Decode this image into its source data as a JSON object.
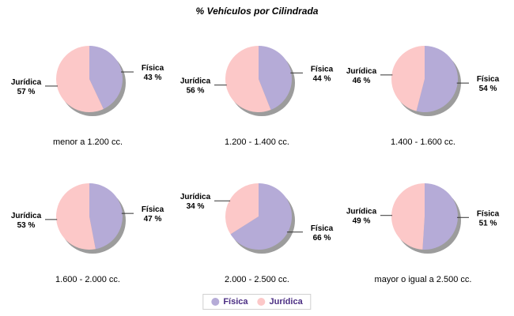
{
  "colors": {
    "fisica": "#b5abd7",
    "juridica": "#fcc8c8",
    "shadow": "#9c9c9c",
    "leader_line": "#333333",
    "legend_text": "#4b2e83",
    "legend_border": "#d0d0d0"
  },
  "legend": {
    "items": [
      {
        "label": "Física",
        "color": "#b5abd7"
      },
      {
        "label": "Jurídica",
        "color": "#fcc8c8"
      }
    ]
  },
  "chart_data": {
    "type": "pie",
    "title": "% Vehículos por Cilindrada",
    "label_format": "{value} %",
    "series": [
      "Física",
      "Jurídica"
    ],
    "start_angle_deg_from_top": 0,
    "direction": "clockwise",
    "pies": [
      {
        "category": "menor a 1.200 cc.",
        "slices": [
          {
            "name": "Física",
            "value": 43
          },
          {
            "name": "Jurídica",
            "value": 57
          }
        ]
      },
      {
        "category": "1.200 - 1.400 cc.",
        "slices": [
          {
            "name": "Física",
            "value": 44
          },
          {
            "name": "Jurídica",
            "value": 56
          }
        ]
      },
      {
        "category": "1.400 - 1.600 cc.",
        "slices": [
          {
            "name": "Física",
            "value": 54
          },
          {
            "name": "Jurídica",
            "value": 46
          }
        ]
      },
      {
        "category": "1.600 - 2.000 cc.",
        "slices": [
          {
            "name": "Física",
            "value": 47
          },
          {
            "name": "Jurídica",
            "value": 53
          }
        ]
      },
      {
        "category": "2.000 - 2.500 cc.",
        "slices": [
          {
            "name": "Física",
            "value": 66
          },
          {
            "name": "Jurídica",
            "value": 34
          }
        ]
      },
      {
        "category": "mayor o igual a 2.500 cc.",
        "slices": [
          {
            "name": "Física",
            "value": 51
          },
          {
            "name": "Jurídica",
            "value": 49
          }
        ]
      }
    ]
  }
}
